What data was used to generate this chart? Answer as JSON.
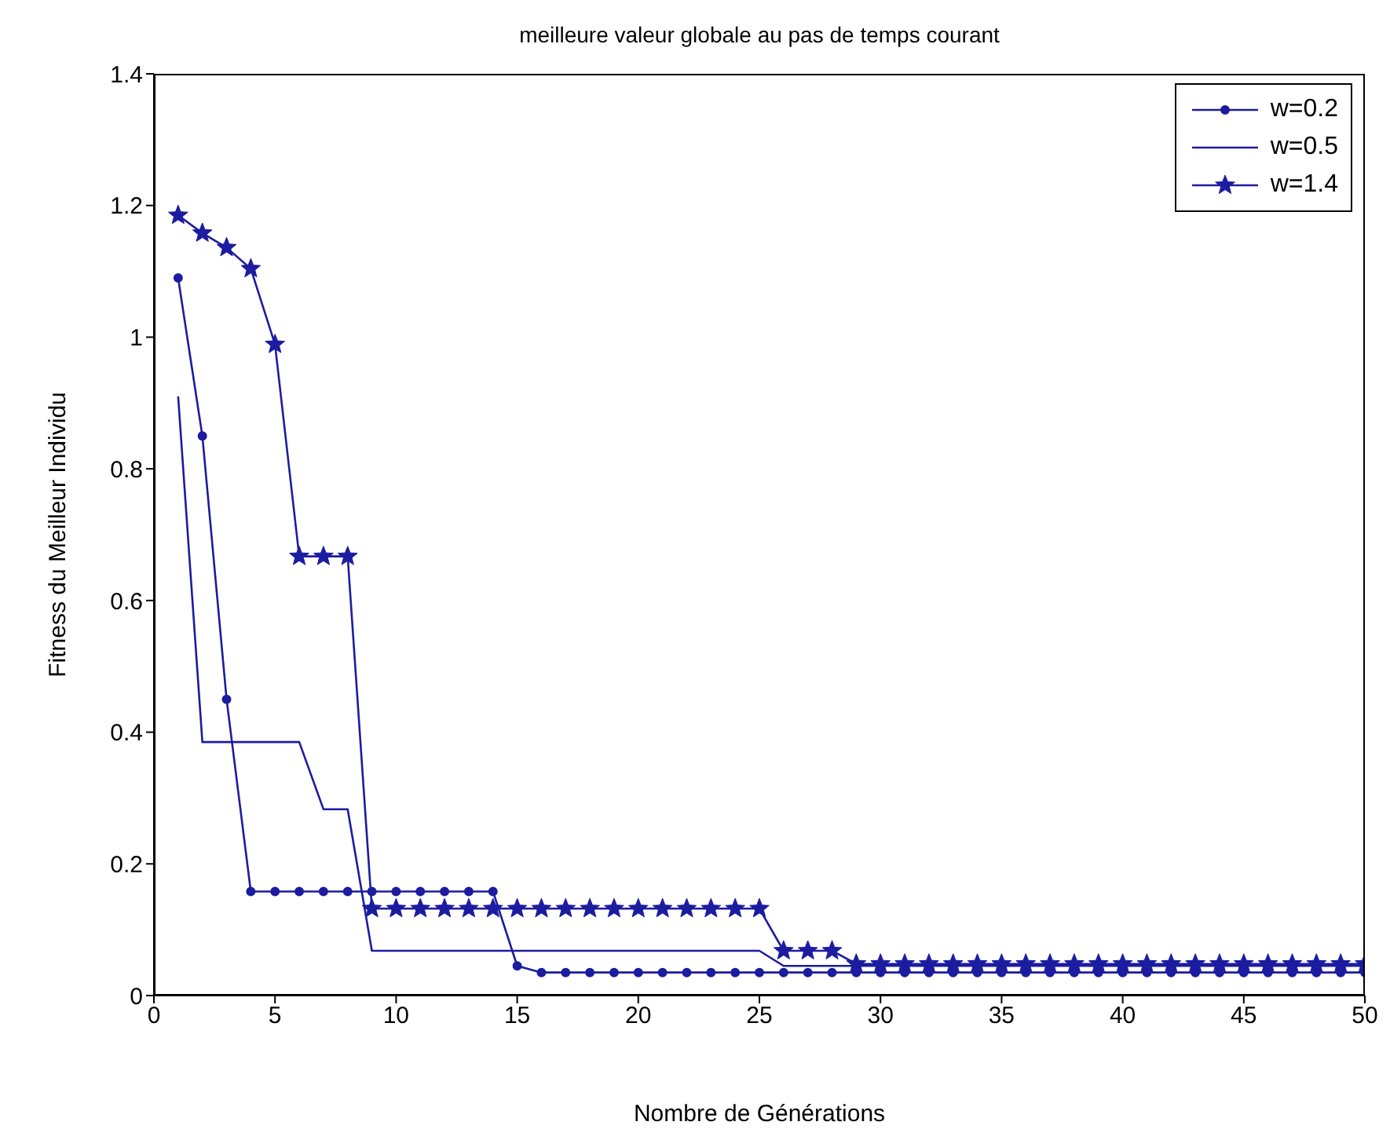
{
  "chart_data": {
    "type": "line",
    "title": "meilleure valeur globale au pas de temps courant",
    "xlabel": "Nombre de Générations",
    "ylabel": "Fitness du Meilleur Individu",
    "x": [
      1,
      2,
      3,
      4,
      5,
      6,
      7,
      8,
      9,
      10,
      11,
      12,
      13,
      14,
      15,
      16,
      17,
      18,
      19,
      20,
      21,
      22,
      23,
      24,
      25,
      26,
      27,
      28,
      29,
      30,
      31,
      32,
      33,
      34,
      35,
      36,
      37,
      38,
      39,
      40,
      41,
      42,
      43,
      44,
      45,
      46,
      47,
      48,
      49,
      50
    ],
    "series": [
      {
        "name": "w=0.2",
        "color": "#1c1ca0",
        "marker": "circle",
        "values": [
          1.09,
          0.85,
          0.45,
          0.158,
          0.158,
          0.158,
          0.158,
          0.158,
          0.158,
          0.158,
          0.158,
          0.158,
          0.158,
          0.158,
          0.045,
          0.035,
          0.035,
          0.035,
          0.035,
          0.035,
          0.035,
          0.035,
          0.035,
          0.035,
          0.035,
          0.035,
          0.035,
          0.035,
          0.035,
          0.035,
          0.035,
          0.035,
          0.035,
          0.035,
          0.035,
          0.035,
          0.035,
          0.035,
          0.035,
          0.035,
          0.035,
          0.035,
          0.035,
          0.035,
          0.035,
          0.035,
          0.035,
          0.035,
          0.035,
          0.035
        ]
      },
      {
        "name": "w=0.5",
        "color": "#1c1ca0",
        "marker": "none",
        "values": [
          0.91,
          0.385,
          0.385,
          0.385,
          0.385,
          0.385,
          0.283,
          0.283,
          0.068,
          0.068,
          0.068,
          0.068,
          0.068,
          0.068,
          0.068,
          0.068,
          0.068,
          0.068,
          0.068,
          0.068,
          0.068,
          0.068,
          0.068,
          0.068,
          0.068,
          0.045,
          0.045,
          0.045,
          0.045,
          0.045,
          0.045,
          0.045,
          0.045,
          0.045,
          0.045,
          0.045,
          0.045,
          0.045,
          0.045,
          0.045,
          0.045,
          0.045,
          0.045,
          0.045,
          0.045,
          0.045,
          0.045,
          0.045,
          0.045,
          0.045
        ]
      },
      {
        "name": "w=1.4",
        "color": "#1c1ca0",
        "marker": "star",
        "values": [
          1.185,
          1.158,
          1.136,
          1.104,
          0.989,
          0.667,
          0.667,
          0.667,
          0.132,
          0.132,
          0.132,
          0.132,
          0.132,
          0.132,
          0.132,
          0.132,
          0.132,
          0.132,
          0.132,
          0.132,
          0.132,
          0.132,
          0.132,
          0.132,
          0.132,
          0.068,
          0.068,
          0.068,
          0.048,
          0.048,
          0.048,
          0.048,
          0.048,
          0.048,
          0.048,
          0.048,
          0.048,
          0.048,
          0.048,
          0.048,
          0.048,
          0.048,
          0.048,
          0.048,
          0.048,
          0.048,
          0.048,
          0.048,
          0.048,
          0.048
        ]
      }
    ],
    "xlim": [
      0,
      50
    ],
    "xticks": [
      0,
      5,
      10,
      15,
      20,
      25,
      30,
      35,
      40,
      45,
      50
    ],
    "ylim": [
      0,
      1.4
    ],
    "yticks": [
      0,
      0.2,
      0.4,
      0.6,
      0.8,
      1,
      1.2,
      1.4
    ],
    "grid": false,
    "legend": "top right",
    "line_style": "solid"
  }
}
